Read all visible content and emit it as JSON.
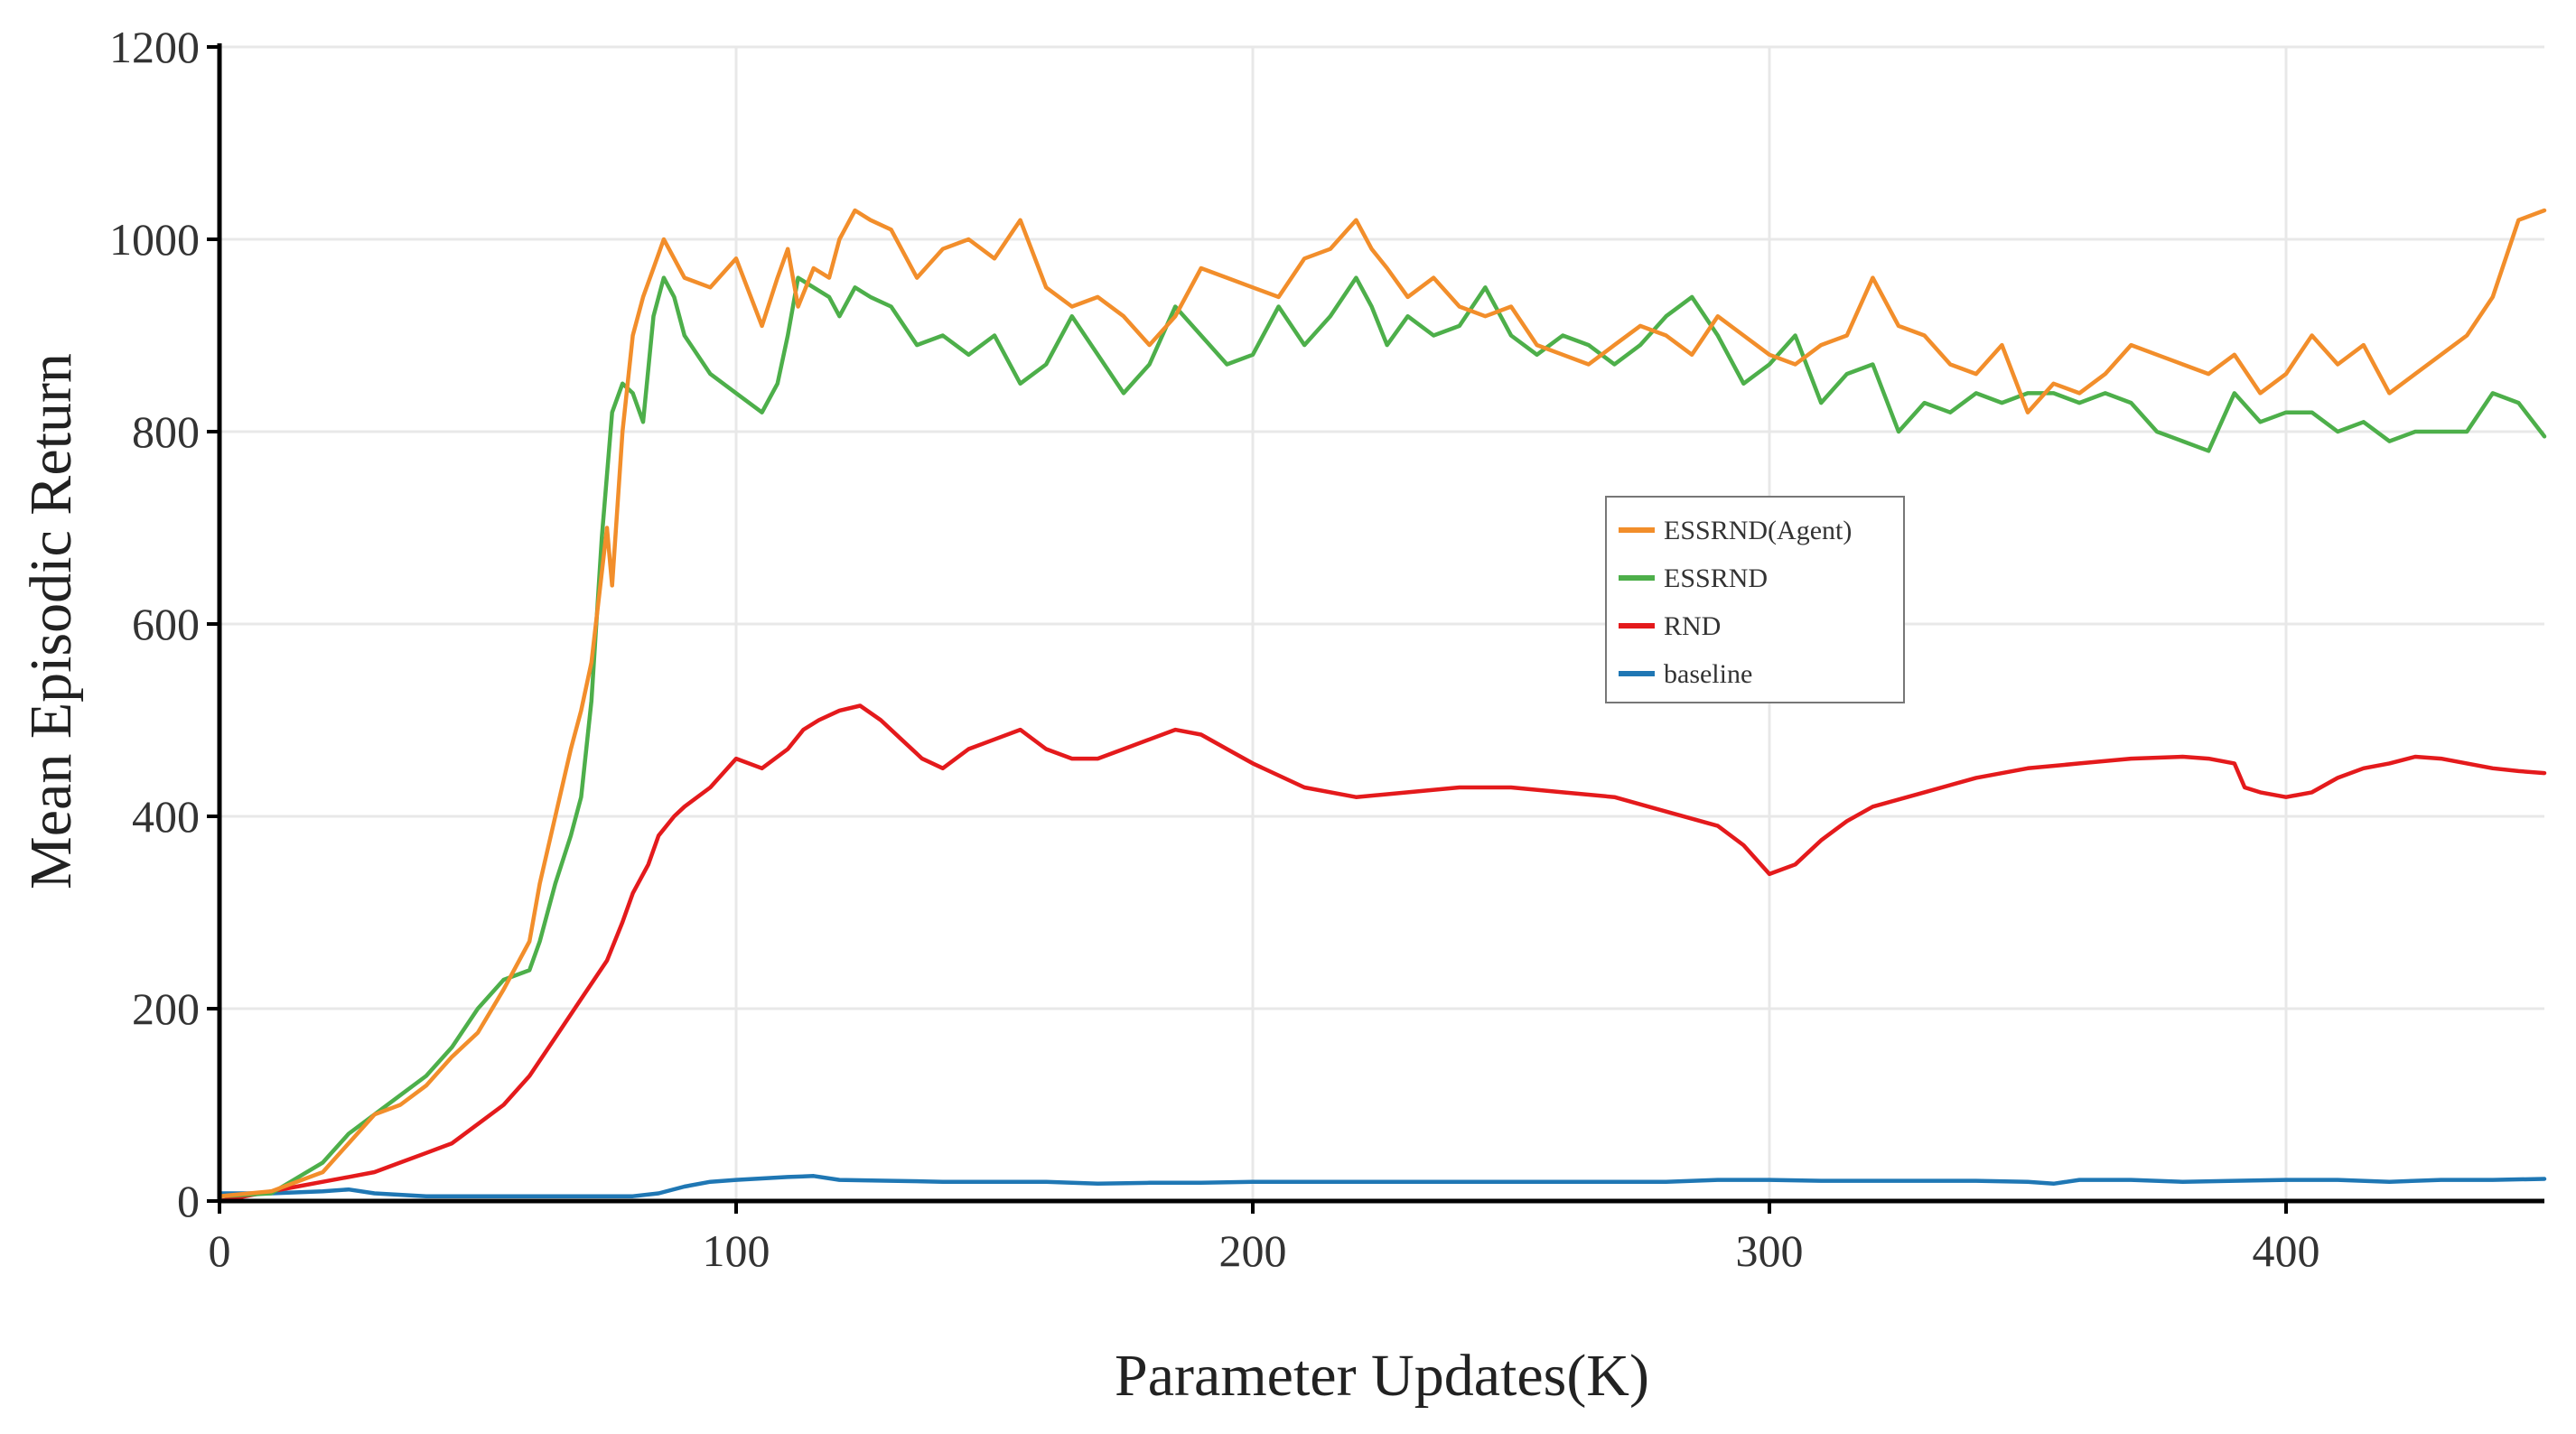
{
  "chart_data": {
    "type": "line",
    "title": "",
    "xlabel": "Parameter Updates(K)",
    "ylabel": "Mean Episodic Return",
    "xlim": [
      0,
      450
    ],
    "ylim": [
      0,
      1200
    ],
    "xticks": [
      0,
      100,
      200,
      300,
      400
    ],
    "yticks": [
      0,
      200,
      400,
      600,
      800,
      1000,
      1200
    ],
    "grid": true,
    "legend_position": "center-right",
    "series": [
      {
        "name": "ESSRND(Agent)",
        "color": "#f28e2b",
        "x": [
          0,
          10,
          20,
          25,
          30,
          35,
          40,
          45,
          50,
          55,
          60,
          62,
          65,
          68,
          70,
          72,
          75,
          76,
          78,
          80,
          82,
          84,
          86,
          88,
          90,
          95,
          100,
          105,
          108,
          110,
          112,
          115,
          118,
          120,
          123,
          126,
          130,
          135,
          140,
          145,
          150,
          155,
          160,
          165,
          170,
          175,
          180,
          185,
          190,
          195,
          200,
          205,
          210,
          215,
          220,
          223,
          226,
          230,
          235,
          240,
          245,
          250,
          255,
          260,
          265,
          270,
          275,
          280,
          285,
          290,
          295,
          300,
          305,
          310,
          315,
          320,
          325,
          330,
          335,
          340,
          345,
          350,
          355,
          360,
          365,
          370,
          375,
          380,
          385,
          390,
          395,
          400,
          405,
          410,
          415,
          420,
          425,
          430,
          435,
          440,
          445,
          450
        ],
        "y": [
          5,
          10,
          30,
          60,
          90,
          100,
          120,
          150,
          175,
          220,
          270,
          330,
          400,
          470,
          510,
          560,
          700,
          640,
          800,
          900,
          940,
          970,
          1000,
          980,
          960,
          950,
          980,
          910,
          960,
          990,
          930,
          970,
          960,
          1000,
          1030,
          1020,
          1010,
          960,
          990,
          1000,
          980,
          1020,
          950,
          930,
          940,
          920,
          890,
          920,
          970,
          960,
          950,
          940,
          980,
          990,
          1020,
          990,
          970,
          940,
          960,
          930,
          920,
          930,
          890,
          880,
          870,
          890,
          910,
          900,
          880,
          920,
          900,
          880,
          870,
          890,
          900,
          960,
          910,
          900,
          870,
          860,
          890,
          820,
          850,
          840,
          860,
          890,
          880,
          870,
          860,
          880,
          840,
          860,
          900,
          870,
          890,
          840,
          860,
          880,
          900,
          940,
          1020,
          1030
        ]
      },
      {
        "name": "ESSRND",
        "color": "#4daf4a",
        "x": [
          0,
          10,
          20,
          25,
          30,
          35,
          40,
          45,
          50,
          55,
          60,
          62,
          65,
          68,
          70,
          72,
          74,
          76,
          78,
          80,
          82,
          84,
          86,
          88,
          90,
          95,
          100,
          105,
          108,
          110,
          112,
          115,
          118,
          120,
          123,
          126,
          130,
          135,
          140,
          145,
          150,
          155,
          160,
          165,
          170,
          175,
          180,
          185,
          190,
          195,
          200,
          205,
          210,
          215,
          220,
          223,
          226,
          230,
          235,
          240,
          245,
          250,
          255,
          260,
          265,
          270,
          275,
          280,
          285,
          290,
          295,
          300,
          305,
          310,
          315,
          320,
          325,
          330,
          335,
          340,
          345,
          350,
          355,
          360,
          365,
          370,
          375,
          380,
          385,
          390,
          395,
          400,
          405,
          410,
          415,
          420,
          425,
          430,
          435,
          440,
          445,
          450
        ],
        "y": [
          5,
          8,
          40,
          70,
          90,
          110,
          130,
          160,
          200,
          230,
          240,
          270,
          330,
          380,
          420,
          520,
          690,
          820,
          850,
          840,
          810,
          920,
          960,
          940,
          900,
          860,
          840,
          820,
          850,
          900,
          960,
          950,
          940,
          920,
          950,
          940,
          930,
          890,
          900,
          880,
          900,
          850,
          870,
          920,
          880,
          840,
          870,
          930,
          900,
          870,
          880,
          930,
          890,
          920,
          960,
          930,
          890,
          920,
          900,
          910,
          950,
          900,
          880,
          900,
          890,
          870,
          890,
          920,
          940,
          900,
          850,
          870,
          900,
          830,
          860,
          870,
          800,
          830,
          820,
          840,
          830,
          840,
          840,
          830,
          840,
          830,
          800,
          790,
          780,
          840,
          810,
          820,
          820,
          800,
          810,
          790,
          800,
          800,
          800,
          840,
          830,
          795
        ]
      },
      {
        "name": "RND",
        "color": "#e41a1c",
        "x": [
          0,
          5,
          10,
          15,
          20,
          25,
          30,
          35,
          40,
          45,
          50,
          55,
          60,
          65,
          70,
          75,
          78,
          80,
          83,
          85,
          88,
          90,
          95,
          100,
          105,
          110,
          113,
          116,
          120,
          124,
          128,
          132,
          136,
          140,
          145,
          150,
          155,
          160,
          165,
          170,
          175,
          180,
          185,
          190,
          195,
          200,
          210,
          220,
          230,
          240,
          250,
          260,
          270,
          280,
          290,
          295,
          300,
          305,
          310,
          315,
          320,
          330,
          340,
          350,
          360,
          370,
          380,
          385,
          390,
          392,
          395,
          400,
          405,
          410,
          415,
          420,
          425,
          430,
          435,
          440,
          445,
          450
        ],
        "y": [
          0,
          5,
          10,
          15,
          20,
          25,
          30,
          40,
          50,
          60,
          80,
          100,
          130,
          170,
          210,
          250,
          290,
          320,
          350,
          380,
          400,
          410,
          430,
          460,
          450,
          470,
          490,
          500,
          510,
          515,
          500,
          480,
          460,
          450,
          470,
          480,
          490,
          470,
          460,
          460,
          470,
          480,
          490,
          485,
          470,
          455,
          430,
          420,
          425,
          430,
          430,
          425,
          420,
          405,
          390,
          370,
          340,
          350,
          375,
          395,
          410,
          425,
          440,
          450,
          455,
          460,
          462,
          460,
          455,
          430,
          425,
          420,
          425,
          440,
          450,
          455,
          462,
          460,
          455,
          450,
          447,
          445
        ]
      },
      {
        "name": "baseline",
        "color": "#1f77b4",
        "x": [
          0,
          10,
          20,
          25,
          30,
          40,
          50,
          60,
          70,
          80,
          85,
          90,
          95,
          100,
          110,
          115,
          120,
          130,
          140,
          150,
          160,
          170,
          180,
          190,
          200,
          210,
          220,
          230,
          240,
          250,
          260,
          270,
          280,
          290,
          300,
          310,
          320,
          330,
          340,
          350,
          355,
          360,
          370,
          380,
          390,
          400,
          410,
          420,
          430,
          440,
          450
        ],
        "y": [
          8,
          8,
          10,
          12,
          8,
          5,
          5,
          5,
          5,
          5,
          8,
          15,
          20,
          22,
          25,
          26,
          22,
          21,
          20,
          20,
          20,
          18,
          19,
          19,
          20,
          20,
          20,
          20,
          20,
          20,
          20,
          20,
          20,
          22,
          22,
          21,
          21,
          21,
          21,
          20,
          18,
          22,
          22,
          20,
          21,
          22,
          22,
          20,
          22,
          22,
          23
        ]
      }
    ]
  }
}
